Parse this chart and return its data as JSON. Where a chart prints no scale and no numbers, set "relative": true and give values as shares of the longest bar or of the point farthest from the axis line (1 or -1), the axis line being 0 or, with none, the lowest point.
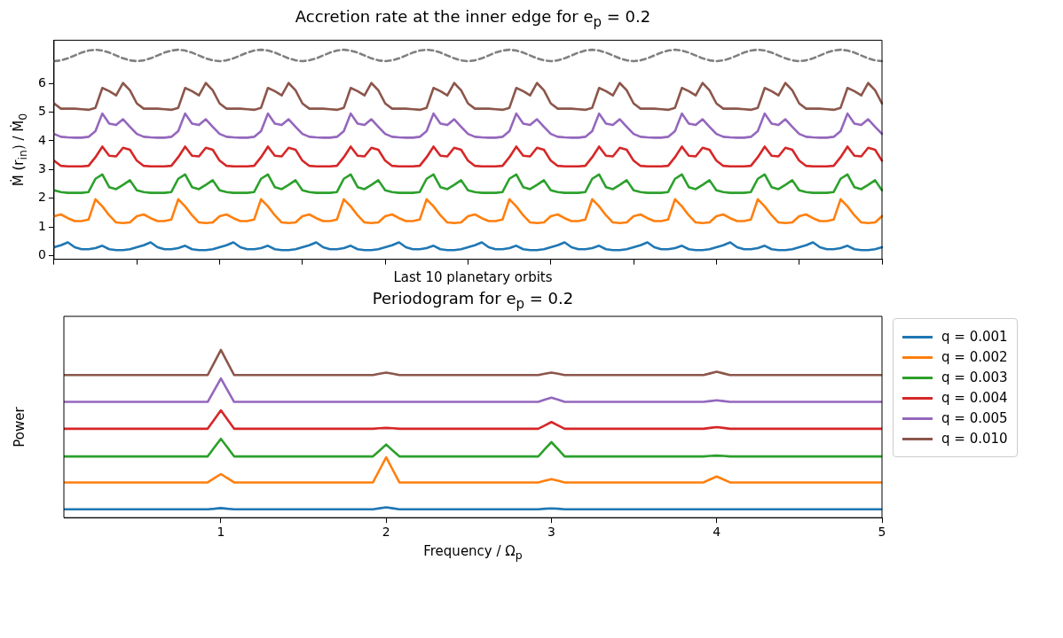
{
  "chart_data": [
    {
      "type": "line",
      "title": "Accretion rate at the inner edge for e$_{p}$ = 0.2",
      "xlabel": "Last 10 planetary orbits",
      "ylabel": "Ṁ (r$_{in}$) / Ṁ$_{0}$",
      "tick_labels": "y",
      "ylim": [
        -0.12,
        7.5
      ],
      "yticks": [
        0,
        1,
        2,
        3,
        4,
        5,
        6
      ],
      "categories": [
        null,
        null,
        null,
        null,
        null,
        null,
        null,
        null,
        null,
        null,
        null,
        null,
        null,
        null,
        null,
        null,
        null,
        null,
        null,
        null,
        null,
        null,
        null,
        null,
        null,
        null,
        null,
        null,
        null,
        null,
        null,
        null,
        null,
        null,
        null,
        null,
        null,
        null,
        null,
        null,
        null,
        null,
        null,
        null,
        null,
        null,
        null,
        null,
        null,
        null,
        null,
        null,
        null,
        null,
        null,
        null,
        null,
        null,
        null,
        null,
        null,
        null,
        null,
        null,
        null,
        null,
        null,
        null,
        null,
        null,
        null,
        null,
        null,
        null,
        null,
        null,
        null,
        null,
        null,
        null,
        null,
        null,
        null,
        null,
        null,
        null,
        null,
        null,
        null,
        null,
        null,
        null,
        null,
        null,
        null,
        null,
        null,
        null,
        null,
        null,
        null,
        null,
        null,
        null,
        null,
        null,
        null,
        null,
        null,
        null,
        null,
        null,
        null,
        null,
        null,
        null,
        null,
        null,
        null,
        null,
        null
      ],
      "series": [
        {
          "color": "#1f77b4",
          "values": [
            0.3,
            0.37,
            0.47,
            0.3,
            0.23,
            0.23,
            0.27,
            0.35,
            0.23,
            0.2,
            0.2,
            0.23,
            0.3,
            0.37,
            0.47,
            0.3,
            0.23,
            0.23,
            0.27,
            0.35,
            0.23,
            0.2,
            0.2,
            0.23,
            0.3,
            0.37,
            0.47,
            0.3,
            0.23,
            0.23,
            0.27,
            0.35,
            0.23,
            0.2,
            0.2,
            0.23,
            0.3,
            0.37,
            0.47,
            0.3,
            0.23,
            0.23,
            0.27,
            0.35,
            0.23,
            0.2,
            0.2,
            0.23,
            0.3,
            0.37,
            0.47,
            0.3,
            0.23,
            0.23,
            0.27,
            0.35,
            0.23,
            0.2,
            0.2,
            0.23,
            0.3,
            0.37,
            0.47,
            0.3,
            0.23,
            0.23,
            0.27,
            0.35,
            0.23,
            0.2,
            0.2,
            0.23,
            0.3,
            0.37,
            0.47,
            0.3,
            0.23,
            0.23,
            0.27,
            0.35,
            0.23,
            0.2,
            0.2,
            0.23,
            0.3,
            0.37,
            0.47,
            0.3,
            0.23,
            0.23,
            0.27,
            0.35,
            0.23,
            0.2,
            0.2,
            0.23,
            0.3,
            0.37,
            0.47,
            0.3,
            0.23,
            0.23,
            0.27,
            0.35,
            0.23,
            0.2,
            0.2,
            0.23,
            0.3,
            0.37,
            0.47,
            0.3,
            0.23,
            0.23,
            0.27,
            0.35,
            0.23,
            0.2,
            0.2,
            0.23,
            0.3
          ]
        },
        {
          "color": "#ff7f0e",
          "values": [
            1.38,
            1.44,
            1.31,
            1.21,
            1.21,
            1.26,
            1.97,
            1.72,
            1.41,
            1.16,
            1.14,
            1.16,
            1.38,
            1.44,
            1.31,
            1.21,
            1.21,
            1.26,
            1.97,
            1.72,
            1.41,
            1.16,
            1.14,
            1.16,
            1.38,
            1.44,
            1.31,
            1.21,
            1.21,
            1.26,
            1.97,
            1.72,
            1.41,
            1.16,
            1.14,
            1.16,
            1.38,
            1.44,
            1.31,
            1.21,
            1.21,
            1.26,
            1.97,
            1.72,
            1.41,
            1.16,
            1.14,
            1.16,
            1.38,
            1.44,
            1.31,
            1.21,
            1.21,
            1.26,
            1.97,
            1.72,
            1.41,
            1.16,
            1.14,
            1.16,
            1.38,
            1.44,
            1.31,
            1.21,
            1.21,
            1.26,
            1.97,
            1.72,
            1.41,
            1.16,
            1.14,
            1.16,
            1.38,
            1.44,
            1.31,
            1.21,
            1.21,
            1.26,
            1.97,
            1.72,
            1.41,
            1.16,
            1.14,
            1.16,
            1.38,
            1.44,
            1.31,
            1.21,
            1.21,
            1.26,
            1.97,
            1.72,
            1.41,
            1.16,
            1.14,
            1.16,
            1.38,
            1.44,
            1.31,
            1.21,
            1.21,
            1.26,
            1.97,
            1.72,
            1.41,
            1.16,
            1.14,
            1.16,
            1.38,
            1.44,
            1.31,
            1.21,
            1.21,
            1.26,
            1.97,
            1.72,
            1.41,
            1.16,
            1.14,
            1.16,
            1.38
          ]
        },
        {
          "color": "#2ca02c",
          "values": [
            2.28,
            2.22,
            2.19,
            2.19,
            2.19,
            2.22,
            2.68,
            2.83,
            2.39,
            2.32,
            2.47,
            2.63,
            2.28,
            2.22,
            2.19,
            2.19,
            2.19,
            2.22,
            2.68,
            2.83,
            2.39,
            2.32,
            2.47,
            2.63,
            2.28,
            2.22,
            2.19,
            2.19,
            2.19,
            2.22,
            2.68,
            2.83,
            2.39,
            2.32,
            2.47,
            2.63,
            2.28,
            2.22,
            2.19,
            2.19,
            2.19,
            2.22,
            2.68,
            2.83,
            2.39,
            2.32,
            2.47,
            2.63,
            2.28,
            2.22,
            2.19,
            2.19,
            2.19,
            2.22,
            2.68,
            2.83,
            2.39,
            2.32,
            2.47,
            2.63,
            2.28,
            2.22,
            2.19,
            2.19,
            2.19,
            2.22,
            2.68,
            2.83,
            2.39,
            2.32,
            2.47,
            2.63,
            2.28,
            2.22,
            2.19,
            2.19,
            2.19,
            2.22,
            2.68,
            2.83,
            2.39,
            2.32,
            2.47,
            2.63,
            2.28,
            2.22,
            2.19,
            2.19,
            2.19,
            2.22,
            2.68,
            2.83,
            2.39,
            2.32,
            2.47,
            2.63,
            2.28,
            2.22,
            2.19,
            2.19,
            2.19,
            2.22,
            2.68,
            2.83,
            2.39,
            2.32,
            2.47,
            2.63,
            2.28,
            2.22,
            2.19,
            2.19,
            2.19,
            2.22,
            2.68,
            2.83,
            2.39,
            2.32,
            2.47,
            2.63,
            2.28
          ]
        },
        {
          "color": "#d62728",
          "values": [
            3.31,
            3.13,
            3.11,
            3.11,
            3.11,
            3.13,
            3.43,
            3.8,
            3.48,
            3.46,
            3.76,
            3.69,
            3.31,
            3.13,
            3.11,
            3.11,
            3.11,
            3.13,
            3.43,
            3.8,
            3.48,
            3.46,
            3.76,
            3.69,
            3.31,
            3.13,
            3.11,
            3.11,
            3.11,
            3.13,
            3.43,
            3.8,
            3.48,
            3.46,
            3.76,
            3.69,
            3.31,
            3.13,
            3.11,
            3.11,
            3.11,
            3.13,
            3.43,
            3.8,
            3.48,
            3.46,
            3.76,
            3.69,
            3.31,
            3.13,
            3.11,
            3.11,
            3.11,
            3.13,
            3.43,
            3.8,
            3.48,
            3.46,
            3.76,
            3.69,
            3.31,
            3.13,
            3.11,
            3.11,
            3.11,
            3.13,
            3.43,
            3.8,
            3.48,
            3.46,
            3.76,
            3.69,
            3.31,
            3.13,
            3.11,
            3.11,
            3.11,
            3.13,
            3.43,
            3.8,
            3.48,
            3.46,
            3.76,
            3.69,
            3.31,
            3.13,
            3.11,
            3.11,
            3.11,
            3.13,
            3.43,
            3.8,
            3.48,
            3.46,
            3.76,
            3.69,
            3.31,
            3.13,
            3.11,
            3.11,
            3.11,
            3.13,
            3.43,
            3.8,
            3.48,
            3.46,
            3.76,
            3.69,
            3.31,
            3.13,
            3.11,
            3.11,
            3.11,
            3.13,
            3.43,
            3.8,
            3.48,
            3.46,
            3.76,
            3.69,
            3.31
          ]
        },
        {
          "color": "#9467bd",
          "values": [
            4.24,
            4.14,
            4.12,
            4.11,
            4.11,
            4.14,
            4.34,
            4.95,
            4.6,
            4.55,
            4.75,
            4.49,
            4.24,
            4.14,
            4.12,
            4.11,
            4.11,
            4.14,
            4.34,
            4.95,
            4.6,
            4.55,
            4.75,
            4.49,
            4.24,
            4.14,
            4.12,
            4.11,
            4.11,
            4.14,
            4.34,
            4.95,
            4.6,
            4.55,
            4.75,
            4.49,
            4.24,
            4.14,
            4.12,
            4.11,
            4.11,
            4.14,
            4.34,
            4.95,
            4.6,
            4.55,
            4.75,
            4.49,
            4.24,
            4.14,
            4.12,
            4.11,
            4.11,
            4.14,
            4.34,
            4.95,
            4.6,
            4.55,
            4.75,
            4.49,
            4.24,
            4.14,
            4.12,
            4.11,
            4.11,
            4.14,
            4.34,
            4.95,
            4.6,
            4.55,
            4.75,
            4.49,
            4.24,
            4.14,
            4.12,
            4.11,
            4.11,
            4.14,
            4.34,
            4.95,
            4.6,
            4.55,
            4.75,
            4.49,
            4.24,
            4.14,
            4.12,
            4.11,
            4.11,
            4.14,
            4.34,
            4.95,
            4.6,
            4.55,
            4.75,
            4.49,
            4.24,
            4.14,
            4.12,
            4.11,
            4.11,
            4.14,
            4.34,
            4.95,
            4.6,
            4.55,
            4.75,
            4.49,
            4.24,
            4.14,
            4.12,
            4.11,
            4.11,
            4.14,
            4.34,
            4.95,
            4.6,
            4.55,
            4.75,
            4.49,
            4.24
          ]
        },
        {
          "color": "#8c564b",
          "values": [
            5.3,
            5.12,
            5.12,
            5.12,
            5.1,
            5.08,
            5.15,
            5.84,
            5.73,
            5.58,
            6.01,
            5.76,
            5.3,
            5.12,
            5.12,
            5.12,
            5.1,
            5.08,
            5.15,
            5.84,
            5.73,
            5.58,
            6.01,
            5.76,
            5.3,
            5.12,
            5.12,
            5.12,
            5.1,
            5.08,
            5.15,
            5.84,
            5.73,
            5.58,
            6.01,
            5.76,
            5.3,
            5.12,
            5.12,
            5.12,
            5.1,
            5.08,
            5.15,
            5.84,
            5.73,
            5.58,
            6.01,
            5.76,
            5.3,
            5.12,
            5.12,
            5.12,
            5.1,
            5.08,
            5.15,
            5.84,
            5.73,
            5.58,
            6.01,
            5.76,
            5.3,
            5.12,
            5.12,
            5.12,
            5.1,
            5.08,
            5.15,
            5.84,
            5.73,
            5.58,
            6.01,
            5.76,
            5.3,
            5.12,
            5.12,
            5.12,
            5.1,
            5.08,
            5.15,
            5.84,
            5.73,
            5.58,
            6.01,
            5.76,
            5.3,
            5.12,
            5.12,
            5.12,
            5.1,
            5.08,
            5.15,
            5.84,
            5.73,
            5.58,
            6.01,
            5.76,
            5.3,
            5.12,
            5.12,
            5.12,
            5.1,
            5.08,
            5.15,
            5.84,
            5.73,
            5.58,
            6.01,
            5.76,
            5.3,
            5.12,
            5.12,
            5.12,
            5.1,
            5.08,
            5.15,
            5.84,
            5.73,
            5.58,
            6.01,
            5.76,
            5.3
          ]
        },
        {
          "color": "#808080",
          "line_style": "dashed",
          "values": [
            6.77,
            6.8,
            6.87,
            6.97,
            7.07,
            7.14,
            7.17,
            7.14,
            7.07,
            6.97,
            6.87,
            6.8,
            6.77,
            6.8,
            6.87,
            6.97,
            7.07,
            7.14,
            7.17,
            7.14,
            7.07,
            6.97,
            6.87,
            6.8,
            6.77,
            6.8,
            6.87,
            6.97,
            7.07,
            7.14,
            7.17,
            7.14,
            7.07,
            6.97,
            6.87,
            6.8,
            6.77,
            6.8,
            6.87,
            6.97,
            7.07,
            7.14,
            7.17,
            7.14,
            7.07,
            6.97,
            6.87,
            6.8,
            6.77,
            6.8,
            6.87,
            6.97,
            7.07,
            7.14,
            7.17,
            7.14,
            7.07,
            6.97,
            6.87,
            6.8,
            6.77,
            6.8,
            6.87,
            6.97,
            7.07,
            7.14,
            7.17,
            7.14,
            7.07,
            6.97,
            6.87,
            6.8,
            6.77,
            6.8,
            6.87,
            6.97,
            7.07,
            7.14,
            7.17,
            7.14,
            7.07,
            6.97,
            6.87,
            6.8,
            6.77,
            6.8,
            6.87,
            6.97,
            7.07,
            7.14,
            7.17,
            7.14,
            7.07,
            6.97,
            6.87,
            6.8,
            6.77,
            6.8,
            6.87,
            6.97,
            7.07,
            7.14,
            7.17,
            7.14,
            7.07,
            6.97,
            6.87,
            6.8,
            6.77,
            6.8,
            6.87,
            6.97,
            7.07,
            7.14,
            7.17,
            7.14,
            7.07,
            6.97,
            6.87,
            6.8,
            6.77
          ]
        }
      ]
    },
    {
      "type": "line",
      "title": "Periodogram for e$_{p}$ = 0.2",
      "xlabel": "Frequency / Ω$_{p}$",
      "ylabel": "Power",
      "relative": true,
      "tick_labels": "x",
      "legend": "right",
      "xlim": [
        0.05,
        5
      ],
      "xticks": [
        1,
        2,
        3,
        4,
        5
      ],
      "x": [
        0.05,
        0.92,
        0.96,
        1,
        1.04,
        1.08,
        1.92,
        1.96,
        2,
        2.04,
        2.08,
        2.92,
        2.96,
        3,
        3.04,
        3.08,
        3.92,
        3.96,
        4,
        4.04,
        4.08,
        5
      ],
      "series": [
        {
          "name": "q = 0.001",
          "color": "#1f77b4",
          "values": [
            0.05,
            0.05,
            0.053,
            0.057,
            0.053,
            0.05,
            0.05,
            0.056,
            0.062,
            0.056,
            0.05,
            0.05,
            0.053,
            0.055,
            0.053,
            0.05,
            0.05,
            0.05,
            0.05,
            0.05,
            0.05,
            0.05
          ]
        },
        {
          "name": "q = 0.002",
          "color": "#ff7f0e",
          "values": [
            0.21,
            0.21,
            0.235,
            0.26,
            0.235,
            0.21,
            0.21,
            0.285,
            0.36,
            0.285,
            0.21,
            0.21,
            0.22,
            0.23,
            0.22,
            0.21,
            0.21,
            0.228,
            0.245,
            0.228,
            0.21,
            0.21
          ]
        },
        {
          "name": "q = 0.003",
          "color": "#2ca02c",
          "values": [
            0.365,
            0.365,
            0.418,
            0.47,
            0.418,
            0.365,
            0.365,
            0.4,
            0.436,
            0.4,
            0.365,
            0.365,
            0.408,
            0.45,
            0.408,
            0.365,
            0.365,
            0.368,
            0.37,
            0.368,
            0.365,
            0.365
          ]
        },
        {
          "name": "q = 0.004",
          "color": "#d62728",
          "values": [
            0.53,
            0.53,
            0.585,
            0.64,
            0.585,
            0.53,
            0.53,
            0.533,
            0.535,
            0.533,
            0.53,
            0.53,
            0.55,
            0.57,
            0.55,
            0.53,
            0.53,
            0.535,
            0.54,
            0.535,
            0.53,
            0.53
          ]
        },
        {
          "name": "q = 0.005",
          "color": "#9467bd",
          "values": [
            0.69,
            0.69,
            0.76,
            0.83,
            0.76,
            0.69,
            0.69,
            0.69,
            0.69,
            0.69,
            0.69,
            0.69,
            0.703,
            0.715,
            0.703,
            0.69,
            0.69,
            0.695,
            0.7,
            0.695,
            0.69,
            0.69
          ]
        },
        {
          "name": "q = 0.010",
          "color": "#8c564b",
          "values": [
            0.85,
            0.85,
            0.925,
            1.0,
            0.925,
            0.85,
            0.85,
            0.858,
            0.865,
            0.858,
            0.85,
            0.85,
            0.858,
            0.865,
            0.858,
            0.85,
            0.85,
            0.86,
            0.87,
            0.86,
            0.85,
            0.85
          ]
        }
      ]
    }
  ]
}
